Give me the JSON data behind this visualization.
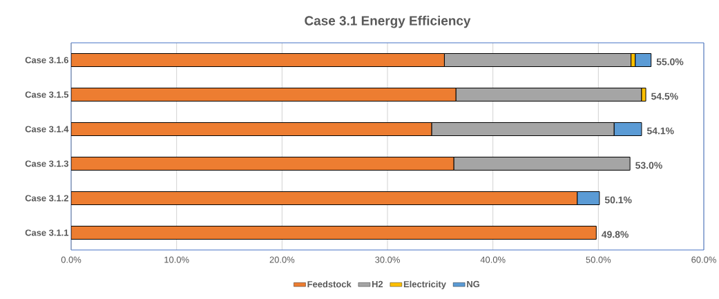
{
  "chart_data": {
    "type": "bar",
    "orientation": "horizontal",
    "stacked": true,
    "title": "Case 3.1 Energy Efficiency",
    "categories": [
      "Case 3.1.6",
      "Case 3.1.5",
      "Case 3.1.4",
      "Case 3.1.3",
      "Case 3.1.2",
      "Case 3.1.1"
    ],
    "series": [
      {
        "name": "Feedstock",
        "color": "#ed7d31",
        "values": [
          35.4,
          36.5,
          34.2,
          36.3,
          48.0,
          49.8
        ]
      },
      {
        "name": "H2",
        "color": "#a5a5a5",
        "values": [
          17.7,
          17.6,
          17.3,
          16.7,
          null,
          null
        ]
      },
      {
        "name": "Electricity",
        "color": "#ffc000",
        "values": [
          0.4,
          0.4,
          null,
          null,
          null,
          null
        ]
      },
      {
        "name": "NG",
        "color": "#5b9bd5",
        "values": [
          1.5,
          null,
          2.6,
          null,
          2.1,
          null
        ]
      }
    ],
    "totals": [
      "55.0%",
      "54.5%",
      "54.1%",
      "53.0%",
      "50.1%",
      "49.8%"
    ],
    "xlim": [
      0,
      60
    ],
    "xticks": [
      {
        "value": 0,
        "label": "0.0%"
      },
      {
        "value": 10,
        "label": "10.0%"
      },
      {
        "value": 20,
        "label": "20.0%"
      },
      {
        "value": 30,
        "label": "30.0%"
      },
      {
        "value": 40,
        "label": "40.0%"
      },
      {
        "value": 50,
        "label": "50.0%"
      },
      {
        "value": 60,
        "label": "60.0%"
      }
    ],
    "grid": "x",
    "legend": "bottom"
  }
}
